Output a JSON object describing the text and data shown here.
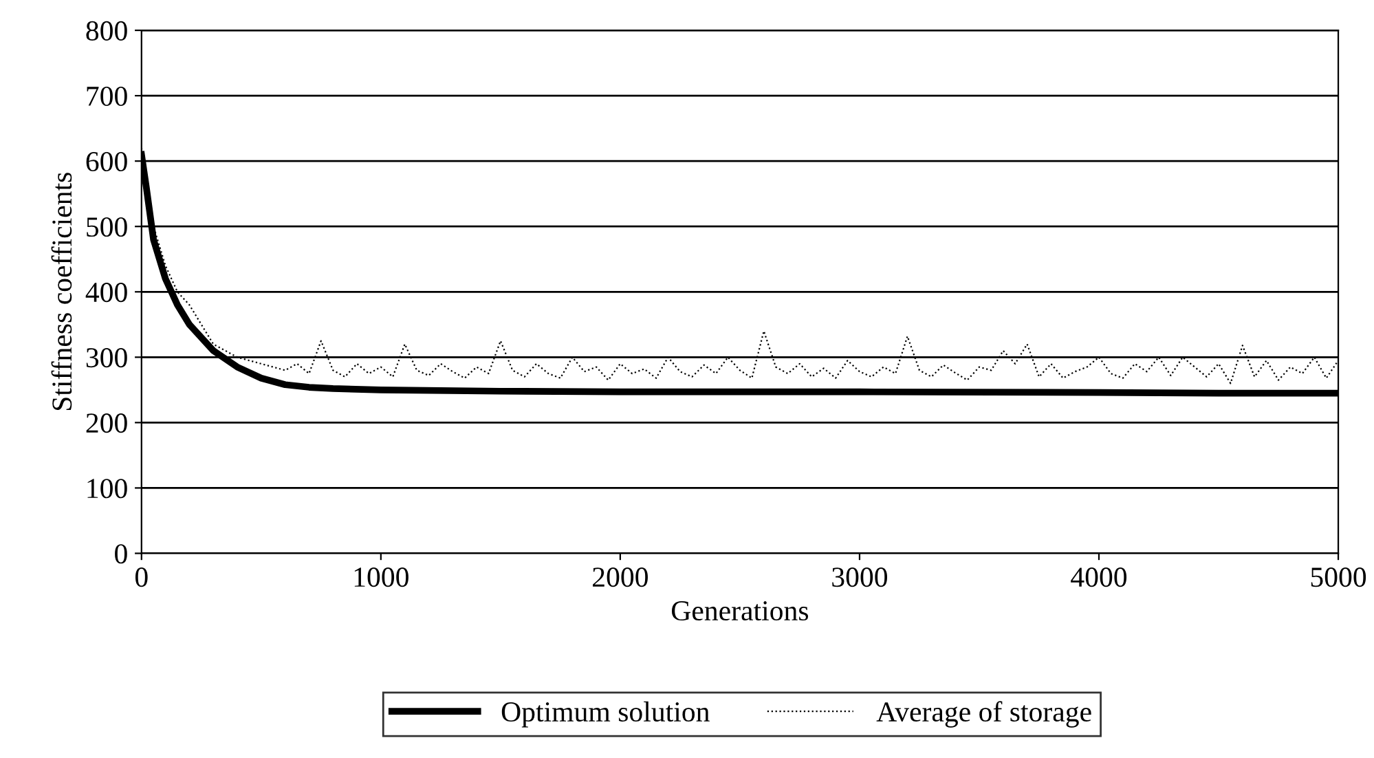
{
  "chart_data": {
    "type": "line",
    "xlabel": "Generations",
    "ylabel": "Stiffness coefficients",
    "xlim": [
      0,
      5000
    ],
    "xticks": [
      0,
      1000,
      2000,
      3000,
      4000,
      5000
    ],
    "ylim": [
      0,
      800
    ],
    "yticks": [
      0,
      100,
      200,
      300,
      400,
      500,
      600,
      700,
      800
    ],
    "grid": "y",
    "legend": "bottom",
    "marker": "none",
    "series": [
      {
        "name": "Optimum solution",
        "color": "#000000",
        "line_style": "solid",
        "x": [
          0,
          20,
          50,
          100,
          150,
          200,
          300,
          400,
          500,
          600,
          700,
          800,
          1000,
          1500,
          2000,
          3000,
          4000,
          4500,
          5000
        ],
        "values": [
          610,
          560,
          480,
          420,
          380,
          350,
          310,
          285,
          268,
          258,
          254,
          252,
          250,
          248,
          247,
          247,
          246,
          245,
          245
        ]
      },
      {
        "name": "Average of storage",
        "color": "#000000",
        "line_style": "dotted",
        "x": [
          0,
          50,
          100,
          150,
          200,
          250,
          300,
          350,
          400,
          450,
          500,
          550,
          600,
          650,
          700,
          750,
          800,
          850,
          900,
          950,
          1000,
          1050,
          1100,
          1150,
          1200,
          1250,
          1300,
          1350,
          1400,
          1450,
          1500,
          1550,
          1600,
          1650,
          1700,
          1750,
          1800,
          1850,
          1900,
          1950,
          2000,
          2050,
          2100,
          2150,
          2200,
          2250,
          2300,
          2350,
          2400,
          2450,
          2500,
          2550,
          2600,
          2650,
          2700,
          2750,
          2800,
          2850,
          2900,
          2950,
          3000,
          3050,
          3100,
          3150,
          3200,
          3250,
          3300,
          3350,
          3400,
          3450,
          3500,
          3550,
          3600,
          3650,
          3700,
          3750,
          3800,
          3850,
          3900,
          3950,
          4000,
          4050,
          4100,
          4150,
          4200,
          4250,
          4300,
          4350,
          4400,
          4450,
          4500,
          4550,
          4600,
          4650,
          4700,
          4750,
          4800,
          4850,
          4900,
          4950,
          5000
        ],
        "values": [
          620,
          500,
          440,
          400,
          380,
          350,
          320,
          310,
          300,
          295,
          290,
          285,
          280,
          290,
          275,
          325,
          280,
          270,
          290,
          275,
          285,
          270,
          320,
          280,
          272,
          290,
          278,
          268,
          285,
          275,
          325,
          280,
          270,
          290,
          275,
          268,
          300,
          278,
          285,
          265,
          290,
          275,
          282,
          268,
          300,
          278,
          270,
          288,
          275,
          300,
          280,
          268,
          340,
          285,
          275,
          290,
          270,
          283,
          268,
          295,
          278,
          270,
          285,
          275,
          332,
          280,
          270,
          288,
          276,
          265,
          285,
          280,
          310,
          290,
          320,
          270,
          290,
          268,
          278,
          285,
          300,
          275,
          268,
          290,
          278,
          300,
          272,
          300,
          285,
          270,
          290,
          260,
          318,
          270,
          295,
          265,
          285,
          275,
          300,
          268,
          295
        ]
      }
    ]
  }
}
